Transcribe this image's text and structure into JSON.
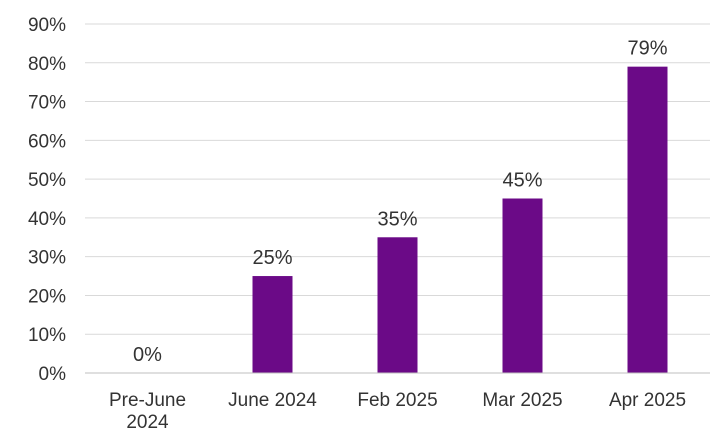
{
  "chart_data": {
    "type": "bar",
    "categories": [
      [
        "Pre-June",
        "2024"
      ],
      [
        "June 2024"
      ],
      [
        "Feb 2025"
      ],
      [
        "Mar 2025"
      ],
      [
        "Apr 2025"
      ]
    ],
    "values": [
      0,
      25,
      35,
      45,
      79
    ],
    "data_labels": [
      "0%",
      "25%",
      "35%",
      "45%",
      "79%"
    ],
    "y_tick_values": [
      0,
      10,
      20,
      30,
      40,
      50,
      60,
      70,
      80,
      90
    ],
    "y_tick_labels": [
      "0%",
      "10%",
      "20%",
      "30%",
      "40%",
      "50%",
      "60%",
      "70%",
      "80%",
      "90%"
    ],
    "ylim": [
      0,
      90
    ],
    "title": "",
    "xlabel": "",
    "ylabel": "",
    "grid": true,
    "legend": "none",
    "bar_color": "#6b0a87",
    "grid_color": "#d9d9d9",
    "axis_color": "#bfbfbf"
  }
}
